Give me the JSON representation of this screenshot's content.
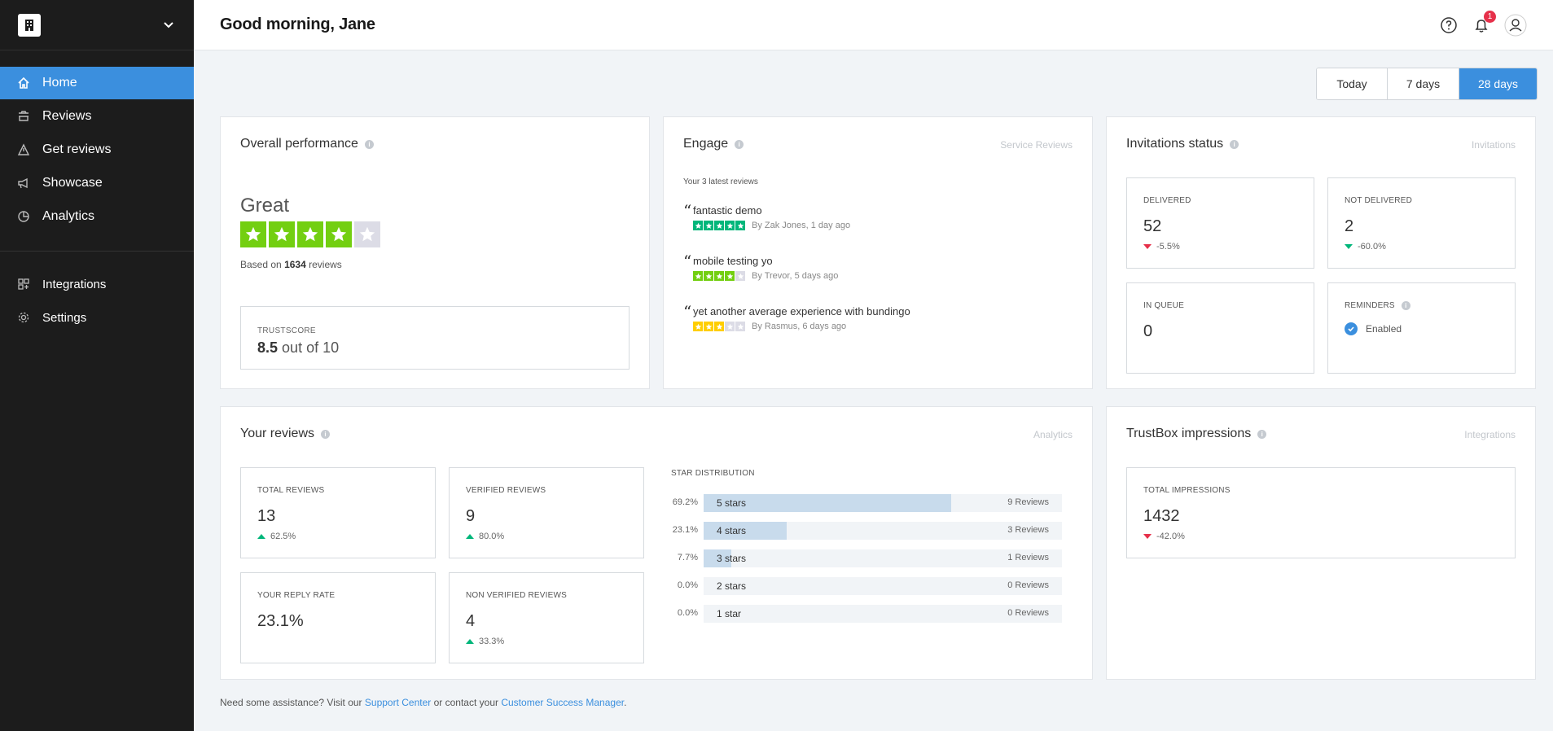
{
  "header": {
    "greeting": "Good morning, Jane",
    "notification_count": "1"
  },
  "sidebar": {
    "items": [
      {
        "label": "Home",
        "icon": "home-icon",
        "active": true
      },
      {
        "label": "Reviews",
        "icon": "reviews-icon"
      },
      {
        "label": "Get reviews",
        "icon": "get-reviews-icon"
      },
      {
        "label": "Showcase",
        "icon": "megaphone-icon"
      },
      {
        "label": "Analytics",
        "icon": "pie-chart-icon"
      }
    ],
    "secondary": [
      {
        "label": "Integrations",
        "icon": "integrations-icon"
      },
      {
        "label": "Settings",
        "icon": "gear-icon"
      }
    ]
  },
  "range": {
    "options": [
      "Today",
      "7 days",
      "28 days"
    ],
    "selected": "28 days"
  },
  "overall": {
    "title": "Overall performance",
    "rating_word": "Great",
    "stars": 4,
    "based_prefix": "Based on",
    "based_count": "1634",
    "based_suffix": "reviews",
    "trustscore_label": "TRUSTSCORE",
    "trustscore_value": "8.5",
    "trustscore_suffix": "out of 10"
  },
  "engage": {
    "title": "Engage",
    "link": "Service Reviews",
    "latest_label": "Your 3 latest reviews",
    "reviews": [
      {
        "title": "fantastic demo",
        "stars": 5,
        "byline": "By Zak Jones, 1 day ago",
        "color": "#00b67a"
      },
      {
        "title": "mobile testing yo",
        "stars": 4,
        "byline": "By Trevor, 5 days ago",
        "color": "#73cf11"
      },
      {
        "title": "yet another average experience with bundingo",
        "stars": 3,
        "byline": "By Rasmus, 6 days ago",
        "color": "#ffce00"
      }
    ]
  },
  "invitations": {
    "title": "Invitations status",
    "link": "Invitations",
    "delivered": {
      "label": "DELIVERED",
      "value": "52",
      "delta": "-5.5%"
    },
    "not_delivered": {
      "label": "NOT DELIVERED",
      "value": "2",
      "delta": "-60.0%"
    },
    "in_queue": {
      "label": "IN QUEUE",
      "value": "0"
    },
    "reminders": {
      "label": "REMINDERS",
      "status": "Enabled"
    }
  },
  "your_reviews": {
    "title": "Your reviews",
    "link": "Analytics",
    "total": {
      "label": "TOTAL REVIEWS",
      "value": "13",
      "delta": "62.5%"
    },
    "verified": {
      "label": "VERIFIED REVIEWS",
      "value": "9",
      "delta": "80.0%"
    },
    "reply_rate": {
      "label": "YOUR REPLY RATE",
      "value": "23.1%"
    },
    "non_verified": {
      "label": "NON VERIFIED REVIEWS",
      "value": "4",
      "delta": "33.3%"
    },
    "distribution_title": "STAR DISTRIBUTION",
    "distribution": [
      {
        "pct": "69.2%",
        "fraction": 0.692,
        "label": "5 stars",
        "count": "9 Reviews"
      },
      {
        "pct": "23.1%",
        "fraction": 0.231,
        "label": "4 stars",
        "count": "3 Reviews"
      },
      {
        "pct": "7.7%",
        "fraction": 0.077,
        "label": "3 stars",
        "count": "1 Reviews"
      },
      {
        "pct": "0.0%",
        "fraction": 0,
        "label": "2 stars",
        "count": "0 Reviews"
      },
      {
        "pct": "0.0%",
        "fraction": 0,
        "label": "1 star",
        "count": "0 Reviews"
      }
    ]
  },
  "trustbox": {
    "title": "TrustBox impressions",
    "link": "Integrations",
    "total": {
      "label": "TOTAL IMPRESSIONS",
      "value": "1432",
      "delta": "-42.0%"
    }
  },
  "footer": {
    "prefix": "Need some assistance? Visit our",
    "support_link": "Support Center",
    "middle": "or contact your",
    "csm_link": "Customer Success Manager",
    "suffix": "."
  },
  "colors": {
    "accent": "#3b8fde",
    "star_green": "#73cf11",
    "star_empty": "#dcdce6",
    "negative": "#e6304a",
    "positive": "#00b67a"
  }
}
